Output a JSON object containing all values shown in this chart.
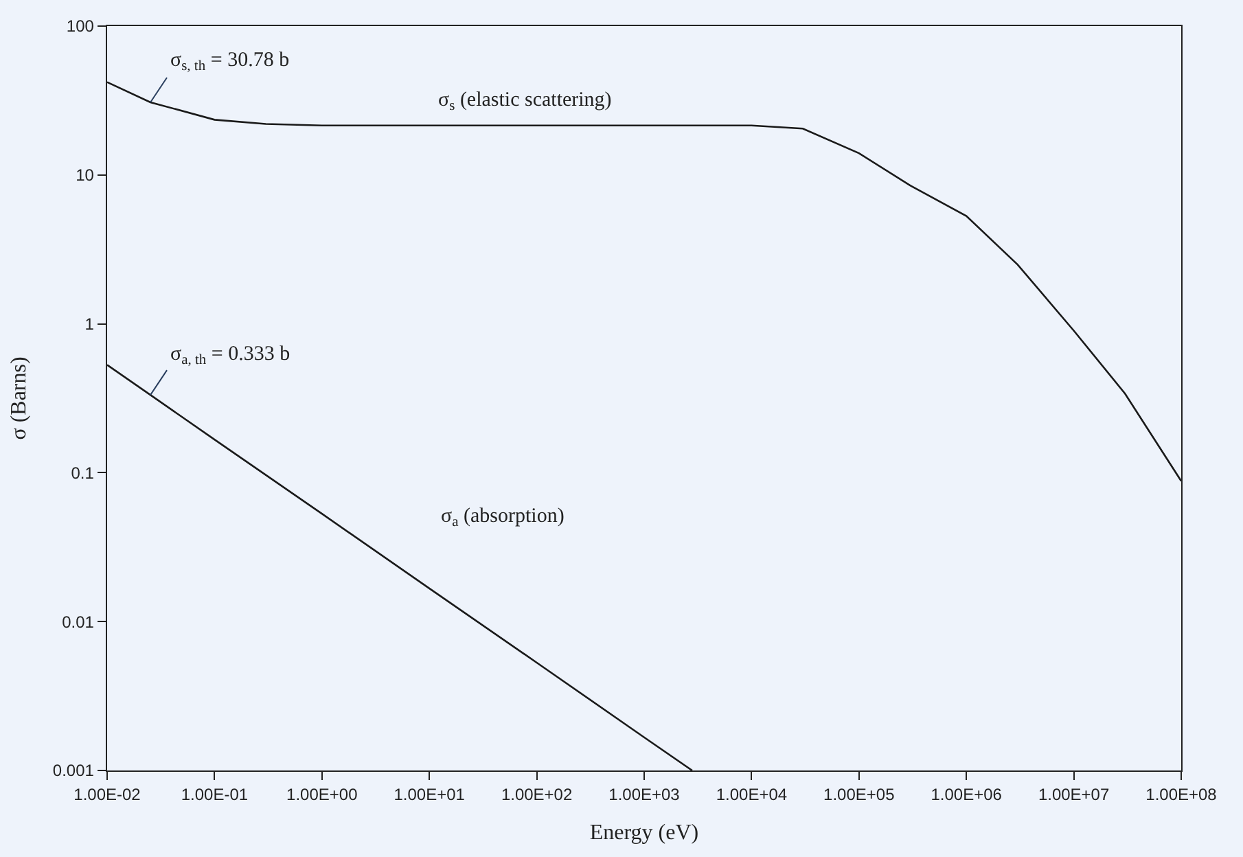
{
  "chart_data": {
    "type": "line",
    "xlabel": "Energy (eV)",
    "ylabel": "σ (Barns)",
    "log": "xy",
    "grid": false,
    "legend": false,
    "marker": "none",
    "line_style": "solid",
    "xlim": [
      0.01,
      100000000
    ],
    "ylim": [
      0.001,
      100
    ],
    "xticks": [
      {
        "value": 0.01,
        "label": "1.00E-02"
      },
      {
        "value": 0.1,
        "label": "1.00E-01"
      },
      {
        "value": 1,
        "label": "1.00E+00"
      },
      {
        "value": 10,
        "label": "1.00E+01"
      },
      {
        "value": 100,
        "label": "1.00E+02"
      },
      {
        "value": 1000,
        "label": "1.00E+03"
      },
      {
        "value": 10000,
        "label": "1.00E+04"
      },
      {
        "value": 100000,
        "label": "1.00E+05"
      },
      {
        "value": 1000000,
        "label": "1.00E+06"
      },
      {
        "value": 10000000,
        "label": "1.00E+07"
      },
      {
        "value": 100000000,
        "label": "1.00E+08"
      }
    ],
    "yticks": [
      0.001,
      0.01,
      0.1,
      1,
      10,
      100
    ],
    "series": [
      {
        "name": "σ$_{s}$ (elastic scattering)",
        "color": "#1a1a1a",
        "x": [
          0.01,
          0.0253,
          0.1,
          0.3,
          1,
          10,
          100,
          1000,
          10000,
          30000,
          100000,
          300000,
          1000000,
          3000000,
          10000000,
          30000000,
          100000000
        ],
        "values": [
          42,
          30.78,
          23.5,
          22,
          21.5,
          21.5,
          21.5,
          21.5,
          21.5,
          20.5,
          14,
          8.5,
          5.3,
          2.5,
          0.9,
          0.34,
          0.088
        ]
      },
      {
        "name": "σ$_{a}$ (absorption)",
        "color": "#1a1a1a",
        "x": [
          0.01,
          0.0253,
          0.1,
          1,
          10,
          100,
          1000,
          2800
        ],
        "values": [
          0.53,
          0.333,
          0.167,
          0.053,
          0.0167,
          0.0053,
          0.00167,
          0.001
        ]
      }
    ],
    "annotations": [
      {
        "text": "σ$_{s, th}$ = 30.78 b",
        "x": 0.0253,
        "y": 30.78
      },
      {
        "text": "σ$_{a, th}$ = 0.333 b",
        "x": 0.0253,
        "y": 0.333
      }
    ]
  }
}
